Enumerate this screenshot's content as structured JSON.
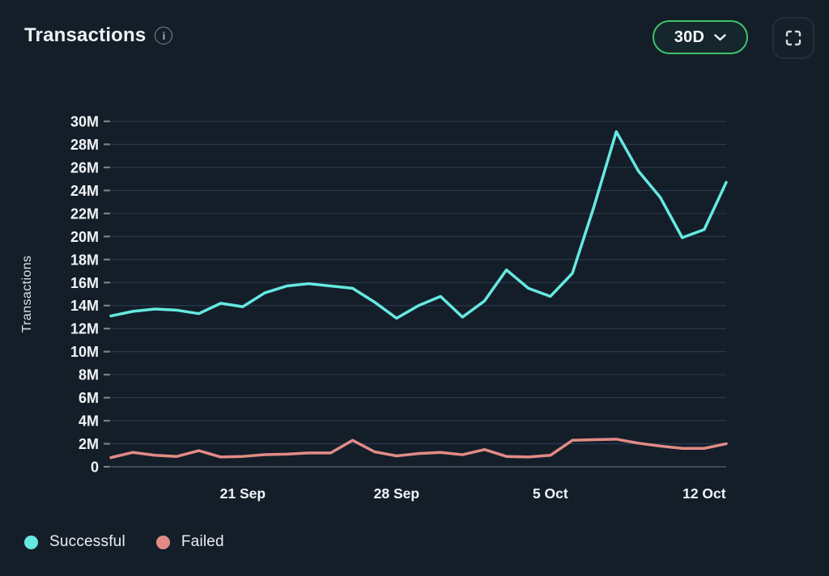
{
  "header": {
    "title": "Transactions",
    "range_selector": {
      "value": "30D"
    }
  },
  "icons": {
    "info_glyph": "i"
  },
  "colors": {
    "background": "#141e29",
    "accent_green": "#3ec46d",
    "successful": "#66e9e1",
    "failed": "#e28b86",
    "grid": "#2a3a50"
  },
  "legend": [
    {
      "label": "Successful",
      "color": "#66e9e1"
    },
    {
      "label": "Failed",
      "color": "#e28b86"
    }
  ],
  "chart_data": {
    "type": "line",
    "title": "Transactions",
    "xlabel": "",
    "ylabel": "Transactions",
    "unit": "millions of transactions",
    "ylim": [
      0,
      30
    ],
    "grid": "horizontal",
    "legend_position": "bottom-left",
    "x": [
      "15 Sep",
      "16 Sep",
      "17 Sep",
      "18 Sep",
      "19 Sep",
      "20 Sep",
      "21 Sep",
      "22 Sep",
      "23 Sep",
      "24 Sep",
      "25 Sep",
      "26 Sep",
      "27 Sep",
      "28 Sep",
      "29 Sep",
      "30 Sep",
      "1 Oct",
      "2 Oct",
      "3 Oct",
      "4 Oct",
      "5 Oct",
      "6 Oct",
      "7 Oct",
      "8 Oct",
      "9 Oct",
      "10 Oct",
      "11 Oct",
      "12 Oct",
      "13 Oct"
    ],
    "x_ticks": [
      {
        "index": 6,
        "label": "21 Sep"
      },
      {
        "index": 13,
        "label": "28 Sep"
      },
      {
        "index": 20,
        "label": "5 Oct"
      },
      {
        "index": 27,
        "label": "12 Oct"
      }
    ],
    "y_ticks": [
      {
        "value": 0,
        "label": "0"
      },
      {
        "value": 2,
        "label": "2M"
      },
      {
        "value": 4,
        "label": "4M"
      },
      {
        "value": 6,
        "label": "6M"
      },
      {
        "value": 8,
        "label": "8M"
      },
      {
        "value": 10,
        "label": "10M"
      },
      {
        "value": 12,
        "label": "12M"
      },
      {
        "value": 14,
        "label": "14M"
      },
      {
        "value": 16,
        "label": "16M"
      },
      {
        "value": 18,
        "label": "18M"
      },
      {
        "value": 20,
        "label": "20M"
      },
      {
        "value": 22,
        "label": "22M"
      },
      {
        "value": 24,
        "label": "24M"
      },
      {
        "value": 26,
        "label": "26M"
      },
      {
        "value": 28,
        "label": "28M"
      },
      {
        "value": 30,
        "label": "30M"
      }
    ],
    "series": [
      {
        "name": "Successful",
        "color": "#66e9e1",
        "values": [
          13.1,
          13.5,
          13.7,
          13.6,
          13.3,
          14.2,
          13.9,
          15.1,
          15.7,
          15.9,
          15.7,
          15.5,
          14.3,
          12.9,
          14.0,
          14.8,
          13.0,
          14.4,
          17.1,
          15.5,
          14.8,
          16.8,
          22.7,
          29.1,
          25.7,
          23.4,
          19.9,
          20.6,
          24.7
        ]
      },
      {
        "name": "Failed",
        "color": "#e28b86",
        "values": [
          0.8,
          1.25,
          1.0,
          0.9,
          1.4,
          0.85,
          0.9,
          1.05,
          1.1,
          1.2,
          1.2,
          2.3,
          1.3,
          0.95,
          1.15,
          1.25,
          1.05,
          1.5,
          0.9,
          0.85,
          1.0,
          2.3,
          2.35,
          2.4,
          2.05,
          1.8,
          1.6,
          1.6,
          2.0
        ]
      }
    ]
  }
}
